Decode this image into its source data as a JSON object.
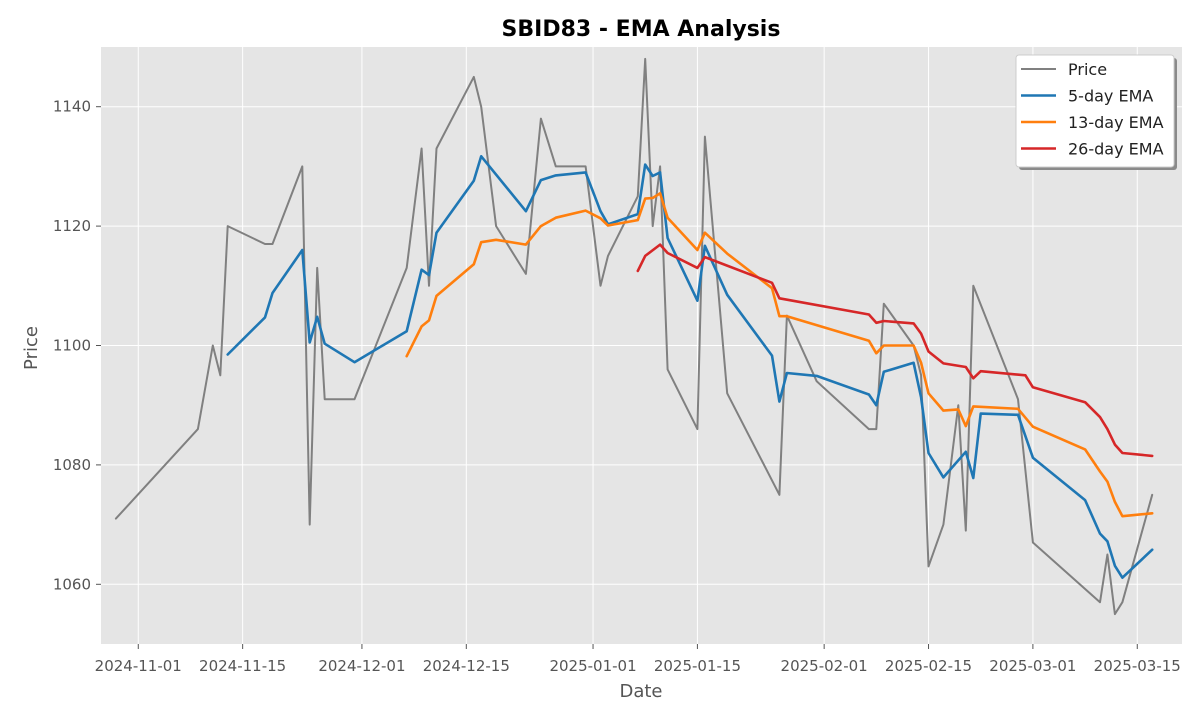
{
  "chart_data": {
    "type": "line",
    "title": "SBID83 - EMA Analysis",
    "xlabel": "Date",
    "ylabel": "Price",
    "x_axis_type": "date",
    "xlim": [
      "2024-10-27",
      "2025-03-21"
    ],
    "ylim": [
      1050,
      1150
    ],
    "x_ticks": [
      "2024-11-01",
      "2024-11-15",
      "2024-12-01",
      "2024-12-15",
      "2025-01-01",
      "2025-01-15",
      "2025-02-01",
      "2025-02-15",
      "2025-03-01",
      "2025-03-15"
    ],
    "y_ticks": [
      1060,
      1080,
      1100,
      1120,
      1140
    ],
    "grid": true,
    "legend_position": "top-right",
    "series": [
      {
        "name": "Price",
        "color": "#808080",
        "points": [
          [
            "2024-10-29",
            1071
          ],
          [
            "2024-11-09",
            1086
          ],
          [
            "2024-11-11",
            1100
          ],
          [
            "2024-11-12",
            1095
          ],
          [
            "2024-11-13",
            1120
          ],
          [
            "2024-11-18",
            1117
          ],
          [
            "2024-11-19",
            1117
          ],
          [
            "2024-11-23",
            1130
          ],
          [
            "2024-11-24",
            1070
          ],
          [
            "2024-11-25",
            1113
          ],
          [
            "2024-11-26",
            1091
          ],
          [
            "2024-11-30",
            1091
          ],
          [
            "2024-12-07",
            1113
          ],
          [
            "2024-12-09",
            1133
          ],
          [
            "2024-12-10",
            1110
          ],
          [
            "2024-12-11",
            1133
          ],
          [
            "2024-12-16",
            1145
          ],
          [
            "2024-12-17",
            1140
          ],
          [
            "2024-12-19",
            1120
          ],
          [
            "2024-12-23",
            1112
          ],
          [
            "2024-12-25",
            1138
          ],
          [
            "2024-12-27",
            1130
          ],
          [
            "2024-12-31",
            1130
          ],
          [
            "2025-01-02",
            1110
          ],
          [
            "2025-01-03",
            1115
          ],
          [
            "2025-01-07",
            1125
          ],
          [
            "2025-01-08",
            1148
          ],
          [
            "2025-01-09",
            1120
          ],
          [
            "2025-01-10",
            1130
          ],
          [
            "2025-01-11",
            1096
          ],
          [
            "2025-01-15",
            1086
          ],
          [
            "2025-01-16",
            1135
          ],
          [
            "2025-01-19",
            1092
          ],
          [
            "2025-01-26",
            1075
          ],
          [
            "2025-01-27",
            1105
          ],
          [
            "2025-01-31",
            1094
          ],
          [
            "2025-02-07",
            1086
          ],
          [
            "2025-02-08",
            1086
          ],
          [
            "2025-02-09",
            1107
          ],
          [
            "2025-02-13",
            1100
          ],
          [
            "2025-02-14",
            1095
          ],
          [
            "2025-02-15",
            1063
          ],
          [
            "2025-02-17",
            1070
          ],
          [
            "2025-02-19",
            1090
          ],
          [
            "2025-02-20",
            1069
          ],
          [
            "2025-02-21",
            1110
          ],
          [
            "2025-02-27",
            1091
          ],
          [
            "2025-03-01",
            1067
          ],
          [
            "2025-03-10",
            1057
          ],
          [
            "2025-03-11",
            1065
          ],
          [
            "2025-03-12",
            1055
          ],
          [
            "2025-03-13",
            1057
          ],
          [
            "2025-03-17",
            1075
          ]
        ]
      },
      {
        "name": "5-day EMA",
        "color": "#1f77b4",
        "points": [
          [
            "2024-11-13",
            1098.5
          ],
          [
            "2024-11-18",
            1104.7
          ],
          [
            "2024-11-19",
            1108.8
          ],
          [
            "2024-11-23",
            1116.0
          ],
          [
            "2024-11-24",
            1100.5
          ],
          [
            "2024-11-25",
            1104.8
          ],
          [
            "2024-11-26",
            1100.3
          ],
          [
            "2024-11-30",
            1097.2
          ],
          [
            "2024-12-07",
            1102.4
          ],
          [
            "2024-12-09",
            1112.7
          ],
          [
            "2024-12-10",
            1111.8
          ],
          [
            "2024-12-11",
            1118.9
          ],
          [
            "2024-12-16",
            1127.6
          ],
          [
            "2024-12-17",
            1131.7
          ],
          [
            "2024-12-23",
            1122.5
          ],
          [
            "2024-12-25",
            1127.7
          ],
          [
            "2024-12-27",
            1128.5
          ],
          [
            "2024-12-31",
            1129.0
          ],
          [
            "2025-01-02",
            1122.5
          ],
          [
            "2025-01-03",
            1120.3
          ],
          [
            "2025-01-07",
            1122.0
          ],
          [
            "2025-01-08",
            1130.3
          ],
          [
            "2025-01-09",
            1128.4
          ],
          [
            "2025-01-10",
            1129.0
          ],
          [
            "2025-01-11",
            1118.0
          ],
          [
            "2025-01-15",
            1107.5
          ],
          [
            "2025-01-16",
            1116.7
          ],
          [
            "2025-01-19",
            1108.5
          ],
          [
            "2025-01-25",
            1098.3
          ],
          [
            "2025-01-26",
            1090.6
          ],
          [
            "2025-01-27",
            1095.4
          ],
          [
            "2025-01-31",
            1094.9
          ],
          [
            "2025-02-07",
            1091.8
          ],
          [
            "2025-02-08",
            1090.0
          ],
          [
            "2025-02-09",
            1095.6
          ],
          [
            "2025-02-13",
            1097.1
          ],
          [
            "2025-02-14",
            1091.3
          ],
          [
            "2025-02-15",
            1082.0
          ],
          [
            "2025-02-17",
            1077.9
          ],
          [
            "2025-02-20",
            1082.2
          ],
          [
            "2025-02-21",
            1077.8
          ],
          [
            "2025-02-22",
            1088.6
          ],
          [
            "2025-02-27",
            1088.4
          ],
          [
            "2025-03-01",
            1081.2
          ],
          [
            "2025-03-08",
            1074.1
          ],
          [
            "2025-03-10",
            1068.5
          ],
          [
            "2025-03-11",
            1067.2
          ],
          [
            "2025-03-12",
            1063.1
          ],
          [
            "2025-03-13",
            1061.1
          ],
          [
            "2025-03-17",
            1065.8
          ]
        ]
      },
      {
        "name": "13-day EMA",
        "color": "#ff7f0e",
        "points": [
          [
            "2024-12-07",
            1098.2
          ],
          [
            "2024-12-09",
            1103.2
          ],
          [
            "2024-12-10",
            1104.2
          ],
          [
            "2024-12-11",
            1108.3
          ],
          [
            "2024-12-16",
            1113.6
          ],
          [
            "2024-12-17",
            1117.3
          ],
          [
            "2024-12-19",
            1117.7
          ],
          [
            "2024-12-23",
            1116.9
          ],
          [
            "2024-12-25",
            1120.0
          ],
          [
            "2024-12-27",
            1121.4
          ],
          [
            "2024-12-31",
            1122.6
          ],
          [
            "2025-01-02",
            1121.3
          ],
          [
            "2025-01-03",
            1120.1
          ],
          [
            "2025-01-07",
            1121.0
          ],
          [
            "2025-01-08",
            1124.6
          ],
          [
            "2025-01-09",
            1124.7
          ],
          [
            "2025-01-10",
            1125.5
          ],
          [
            "2025-01-11",
            1121.4
          ],
          [
            "2025-01-15",
            1116.0
          ],
          [
            "2025-01-16",
            1118.9
          ],
          [
            "2025-01-19",
            1115.4
          ],
          [
            "2025-01-25",
            1109.6
          ],
          [
            "2025-01-26",
            1104.9
          ],
          [
            "2025-01-27",
            1104.9
          ],
          [
            "2025-02-07",
            1100.8
          ],
          [
            "2025-02-08",
            1098.7
          ],
          [
            "2025-02-09",
            1100.0
          ],
          [
            "2025-02-13",
            1100.0
          ],
          [
            "2025-02-14",
            1097.1
          ],
          [
            "2025-02-15",
            1092.0
          ],
          [
            "2025-02-17",
            1089.1
          ],
          [
            "2025-02-19",
            1089.3
          ],
          [
            "2025-02-20",
            1086.5
          ],
          [
            "2025-02-21",
            1089.8
          ],
          [
            "2025-02-27",
            1089.4
          ],
          [
            "2025-03-01",
            1086.4
          ],
          [
            "2025-03-08",
            1082.6
          ],
          [
            "2025-03-10",
            1078.9
          ],
          [
            "2025-03-11",
            1077.2
          ],
          [
            "2025-03-12",
            1073.8
          ],
          [
            "2025-03-13",
            1071.4
          ],
          [
            "2025-03-17",
            1071.9
          ]
        ]
      },
      {
        "name": "26-day EMA",
        "color": "#d62728",
        "points": [
          [
            "2025-01-07",
            1112.5
          ],
          [
            "2025-01-08",
            1115.0
          ],
          [
            "2025-01-10",
            1116.9
          ],
          [
            "2025-01-11",
            1115.5
          ],
          [
            "2025-01-15",
            1113.0
          ],
          [
            "2025-01-16",
            1114.8
          ],
          [
            "2025-01-25",
            1110.5
          ],
          [
            "2025-01-26",
            1107.9
          ],
          [
            "2025-02-07",
            1105.2
          ],
          [
            "2025-02-08",
            1103.8
          ],
          [
            "2025-02-09",
            1104.1
          ],
          [
            "2025-02-13",
            1103.7
          ],
          [
            "2025-02-14",
            1102.0
          ],
          [
            "2025-02-15",
            1099.0
          ],
          [
            "2025-02-17",
            1097.0
          ],
          [
            "2025-02-20",
            1096.4
          ],
          [
            "2025-02-21",
            1094.5
          ],
          [
            "2025-02-22",
            1095.7
          ],
          [
            "2025-02-28",
            1095.0
          ],
          [
            "2025-03-01",
            1093.0
          ],
          [
            "2025-03-08",
            1090.5
          ],
          [
            "2025-03-10",
            1088.0
          ],
          [
            "2025-03-11",
            1086.0
          ],
          [
            "2025-03-12",
            1083.4
          ],
          [
            "2025-03-13",
            1082.0
          ],
          [
            "2025-03-17",
            1081.5
          ]
        ]
      }
    ]
  }
}
